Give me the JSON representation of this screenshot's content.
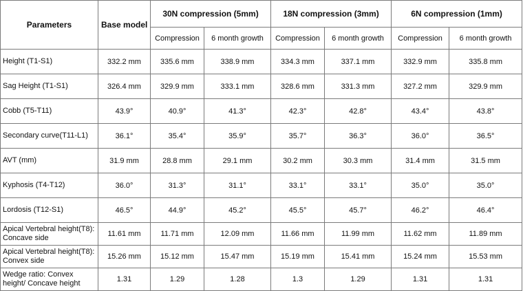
{
  "header": {
    "parameters": "Parameters",
    "base_model": "Base model",
    "groups": [
      "30N compression (5mm)",
      "18N compression (3mm)",
      "6N compression (1mm)"
    ],
    "sub": [
      "Compression",
      "6 month growth",
      "Compression",
      "6 month growth",
      "Compression",
      "6 month growth"
    ]
  },
  "rows": [
    {
      "param": "Height (T1-S1)",
      "values": [
        "332.2 mm",
        "335.6 mm",
        "338.9 mm",
        "334.3 mm",
        "337.1 mm",
        "332.9 mm",
        "335.8 mm"
      ]
    },
    {
      "param": "Sag Height (T1-S1)",
      "values": [
        "326.4 mm",
        "329.9 mm",
        "333.1 mm",
        "328.6 mm",
        "331.3 mm",
        "327.2 mm",
        "329.9 mm"
      ]
    },
    {
      "param": "Cobb (T5-T11)",
      "values": [
        "43.9°",
        "40.9°",
        "41.3°",
        "42.3°",
        "42.8°",
        "43.4°",
        "43.8°"
      ]
    },
    {
      "param": "Secondary curve(T11-L1)",
      "values": [
        "36.1°",
        "35.4°",
        "35.9°",
        "35.7°",
        "36.3°",
        "36.0°",
        "36.5°"
      ]
    },
    {
      "param": "AVT (mm)",
      "values": [
        "31.9 mm",
        "28.8 mm",
        "29.1 mm",
        "30.2 mm",
        "30.3 mm",
        "31.4 mm",
        "31.5 mm"
      ]
    },
    {
      "param": "Kyphosis (T4-T12)",
      "values": [
        "36.0°",
        "31.3°",
        "31.1°",
        "33.1°",
        "33.1°",
        "35.0°",
        "35.0°"
      ]
    },
    {
      "param": "Lordosis (T12-S1)",
      "values": [
        "46.5°",
        "44.9°",
        "45.2°",
        "45.5°",
        "45.7°",
        "46.2°",
        "46.4°"
      ]
    },
    {
      "param": "Apical Vertebral height(T8): Concave side",
      "values": [
        "11.61 mm",
        "11.71 mm",
        "12.09 mm",
        "11.66 mm",
        "11.99 mm",
        "11.62 mm",
        "11.89 mm"
      ]
    },
    {
      "param": "Apical Vertebral height(T8): Convex side",
      "values": [
        "15.26 mm",
        "15.12 mm",
        "15.47 mm",
        "15.19 mm",
        "15.41 mm",
        "15.24 mm",
        "15.53 mm"
      ]
    },
    {
      "param": "Wedge ratio: Convex height/ Concave height",
      "values": [
        "1.31",
        "1.29",
        "1.28",
        "1.3",
        "1.29",
        "1.31",
        "1.31"
      ]
    }
  ]
}
